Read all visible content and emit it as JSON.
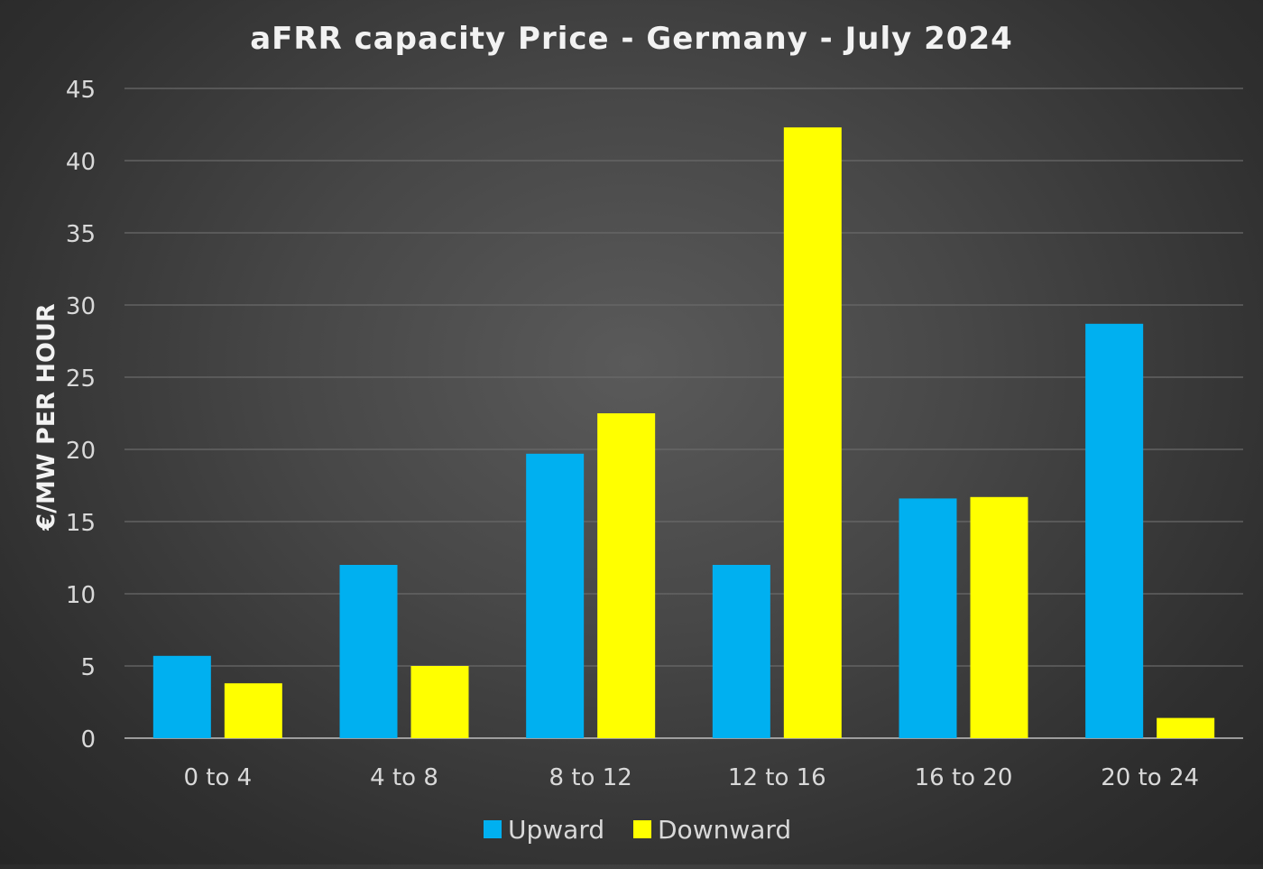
{
  "chart_data": {
    "type": "bar",
    "title": "aFRR capacity Price - Germany - July 2024",
    "xlabel": "",
    "ylabel": "€/MW PER HOUR",
    "categories": [
      "0 to 4",
      "4 to 8",
      "8 to 12",
      "12 to 16",
      "16 to 20",
      "20 to 24"
    ],
    "series": [
      {
        "name": "Upward",
        "color": "#00B0F0",
        "values": [
          5.7,
          12.0,
          19.7,
          12.0,
          16.6,
          28.7
        ]
      },
      {
        "name": "Downward",
        "color": "#FFFF00",
        "values": [
          3.8,
          5.0,
          22.5,
          42.3,
          16.7,
          1.4
        ]
      }
    ],
    "ylim": [
      0,
      45
    ],
    "yticks": [
      "0",
      "5",
      "10",
      "15",
      "20",
      "25",
      "30",
      "35",
      "40",
      "45"
    ],
    "grid": true,
    "legend_position": "bottom"
  }
}
